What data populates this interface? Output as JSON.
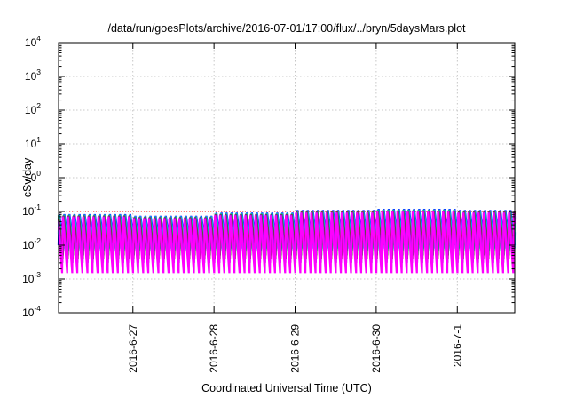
{
  "chart_data": {
    "type": "line",
    "title": "/data/run/goesPlots/archive/2016-07-01/17:00/flux/../bryn/5daysMars.plot",
    "xlabel": "Coordinated Universal Time (UTC)",
    "ylabel": "cSv/day",
    "yscale": "log",
    "ylim": [
      0.0001,
      10000
    ],
    "y_ticks": [
      {
        "base": "10",
        "exp": "-4"
      },
      {
        "base": "10",
        "exp": "-3"
      },
      {
        "base": "10",
        "exp": "-2"
      },
      {
        "base": "10",
        "exp": "-1"
      },
      {
        "base": "10",
        "exp": "0"
      },
      {
        "base": "10",
        "exp": "1"
      },
      {
        "base": "10",
        "exp": "2"
      },
      {
        "base": "10",
        "exp": "3"
      },
      {
        "base": "10",
        "exp": "4"
      }
    ],
    "x_range": [
      "2016-06-26T02:00",
      "2016-07-01T17:00"
    ],
    "x_ticks": [
      "2016-6-27",
      "2016-6-28",
      "2016-6-29",
      "2016-6-30",
      "2016-7-1"
    ],
    "grid": true,
    "legend": "none",
    "reference_line": {
      "value": 0.1,
      "color": "#ff0000",
      "style": "dotted"
    },
    "pattern": {
      "description": "Repeating sawtooth: sharp rise then decay, period about 1.5 hours, phases shifted across series",
      "cycles_per_day": 16,
      "series_colors": [
        "#0000ff",
        "#1e90ff",
        "#00c8d0",
        "#2e8b57",
        "#8b1a1a",
        "#a020f0",
        "#ff00ff"
      ],
      "peak_by_day": {
        "2016-6-26": 0.09,
        "2016-6-27": 0.08,
        "2016-6-28": 0.1,
        "2016-6-29": 0.12,
        "2016-6-30": 0.13,
        "2016-7-1": 0.12
      },
      "trough_by_series": [
        0.01,
        0.008,
        0.007,
        0.005,
        0.004,
        0.003,
        0.0015
      ]
    }
  }
}
